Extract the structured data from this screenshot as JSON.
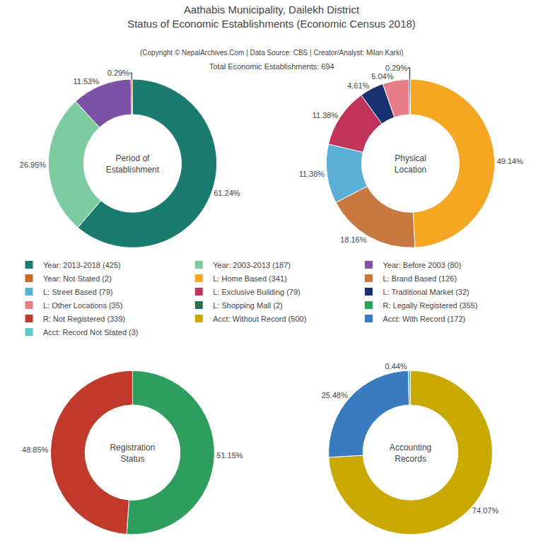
{
  "title": "Aathabis Municipality, Dailekh District\nStatus of Economic Establishments (Economic Census 2018)",
  "subtitle": "(Copyright © NepalArchives.Com | Data Source: CBS | Creator/Analyst: Milan Karki)",
  "annotations": [
    "Total Economic Establishments: 694"
  ],
  "chart_data": [
    {
      "type": "pie",
      "title": "Period of\nEstablishment",
      "categories": [
        "Year: 2013-2018 (425)",
        "Year: 2003-2013 (187)",
        "Year: Before 2003 (80)",
        "Year: Not Stated (2)"
      ],
      "values": [
        61.24,
        26.95,
        11.53,
        0.29
      ],
      "value_labels": [
        "61.24%",
        "26.95%",
        "11.53%",
        "0.29%"
      ],
      "colors": [
        "#1a7a6e",
        "#7ecba1",
        "#7b52a6",
        "#c96a2a"
      ],
      "data_labels": true
    },
    {
      "type": "pie",
      "title": "Physical\nLocation",
      "categories": [
        "L: Home Based (341)",
        "L: Brand Based (126)",
        "L: Street Based (79)",
        "L: Exclusive Building (79)",
        "L: Traditional Market (32)",
        "L: Other Locations (35)",
        "L: Shopping Mall (2)"
      ],
      "values": [
        49.14,
        18.16,
        11.38,
        11.38,
        4.61,
        5.04,
        0.29
      ],
      "value_labels": [
        "49.14%",
        "18.16%",
        "11.38%",
        "11.38%",
        "4.61%",
        "5.04%",
        "0.29%"
      ],
      "colors": [
        "#f5a623",
        "#c87941",
        "#5bafd6",
        "#c0335a",
        "#1a3070",
        "#e87d8a",
        "#2e6b4f"
      ],
      "data_labels": true
    },
    {
      "type": "pie",
      "title": "Registration\nStatus",
      "categories": [
        "R: Legally Registered (355)",
        "R: Not Registered (339)"
      ],
      "values": [
        51.15,
        48.85
      ],
      "value_labels": [
        "51.15%",
        "48.85%"
      ],
      "colors": [
        "#2e9e5e",
        "#c0392b"
      ],
      "data_labels": true
    },
    {
      "type": "pie",
      "title": "Accounting\nRecords",
      "categories": [
        "Acct: Without Record (500)",
        "Acct: With Record (172)",
        "Acct: Record Not Stated (3)"
      ],
      "values": [
        74.07,
        25.48,
        0.44
      ],
      "value_labels": [
        "74.07%",
        "25.48%",
        "0.44%"
      ],
      "colors": [
        "#c9a800",
        "#3a7abf",
        "#5bc8c8"
      ],
      "data_labels": true
    }
  ]
}
